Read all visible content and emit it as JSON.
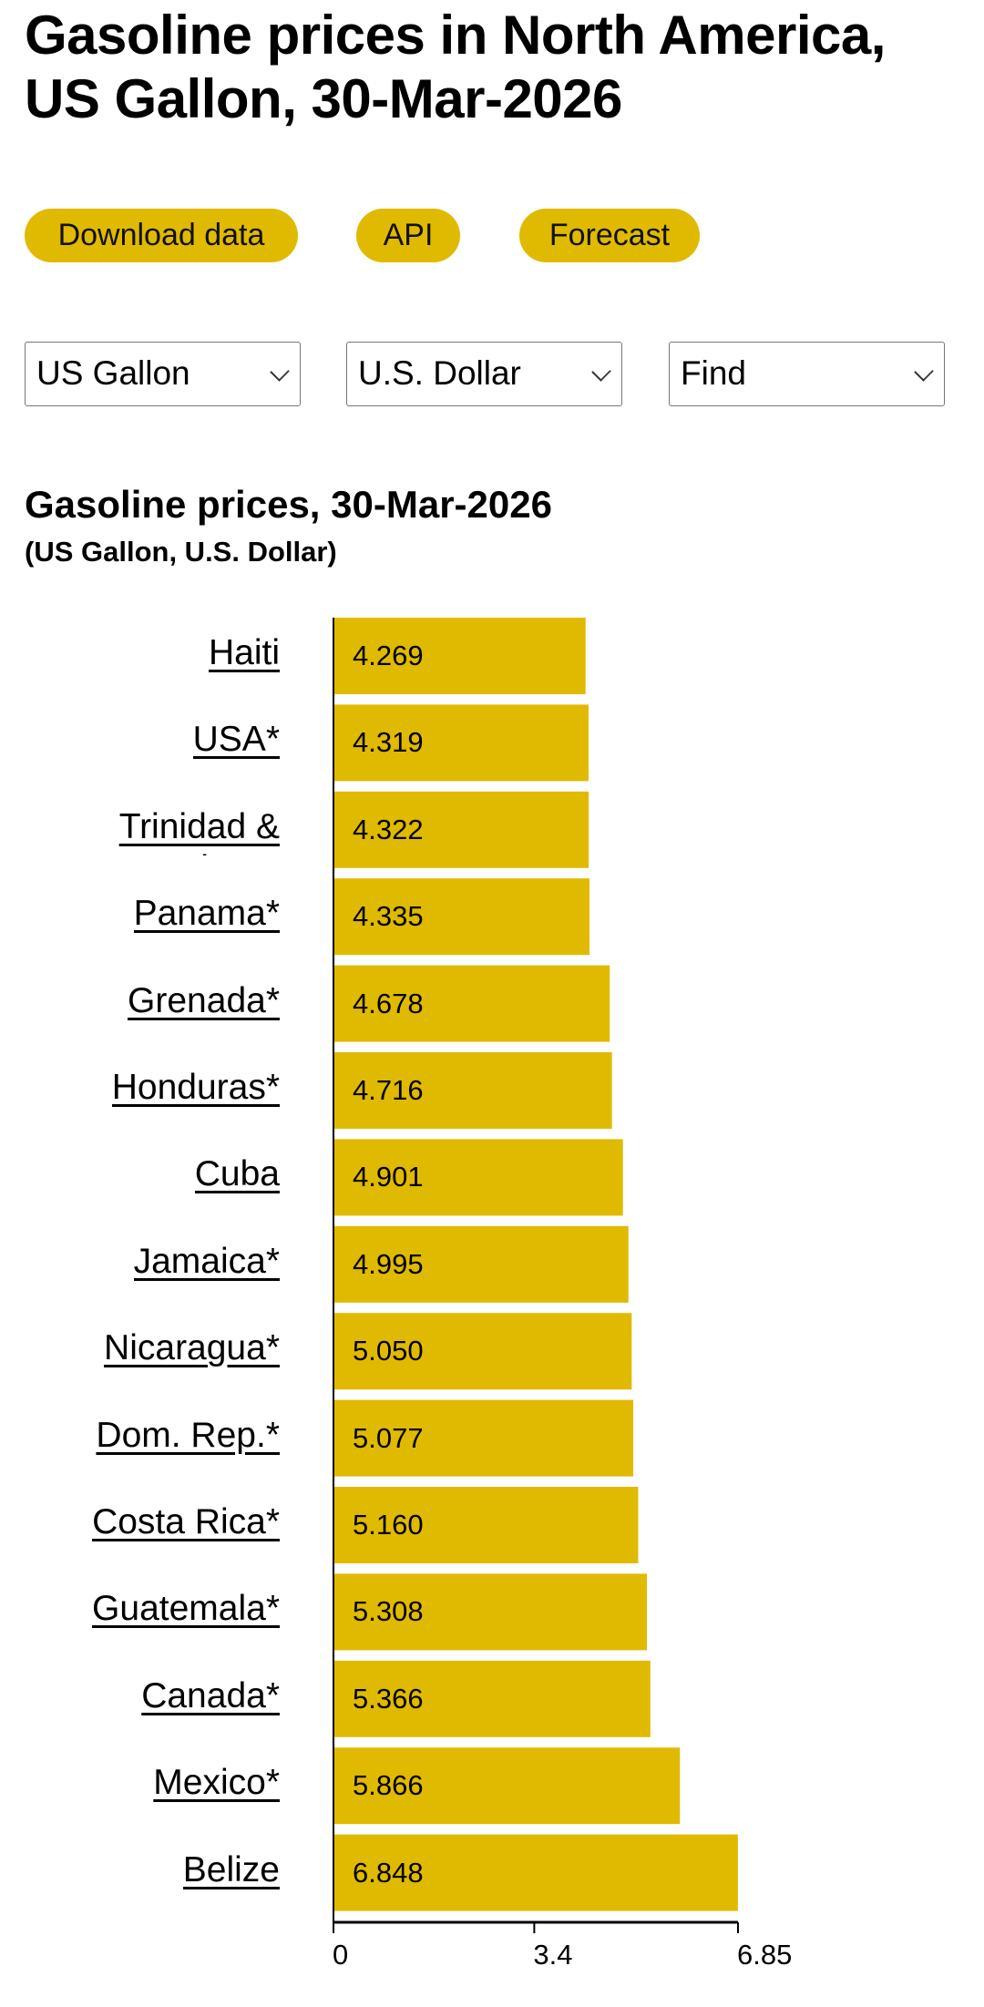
{
  "page": {
    "title_line1": "Gasoline prices in North America,",
    "title_line2": "US Gallon, 30-Mar-2026"
  },
  "buttons": {
    "download": "Download data",
    "api": "API",
    "forecast": "Forecast"
  },
  "selects": {
    "unit": "US Gallon",
    "currency": "U.S. Dollar",
    "find": "Find"
  },
  "colors": {
    "accent": "#e0ba00",
    "axis": "#000000"
  },
  "chart_data": {
    "type": "bar",
    "orientation": "horizontal",
    "title": "Gasoline prices, 30-Mar-2026",
    "subtitle": "(US Gallon, U.S. Dollar)",
    "categories": [
      "Haiti ",
      "USA*",
      "Trinidad & Tobago",
      "Panama*",
      "Grenada*",
      "Honduras*",
      "Cuba ",
      "Jamaica*",
      "Nicaragua*",
      "Dom. Rep.*",
      "Costa Rica*",
      "Guatemala*",
      "Canada*",
      "Mexico*",
      "Belize "
    ],
    "values": [
      4.269,
      4.319,
      4.322,
      4.335,
      4.678,
      4.716,
      4.901,
      4.995,
      5.05,
      5.077,
      5.16,
      5.308,
      5.366,
      5.866,
      6.848
    ],
    "value_labels": [
      "4.269",
      "4.319",
      "4.322",
      "4.335",
      "4.678",
      "4.716",
      "4.901",
      "4.995",
      "5.050",
      "5.077",
      "5.160",
      "5.308",
      "5.366",
      "5.866",
      "6.848"
    ],
    "xlim": [
      0,
      6.85
    ],
    "xticks": [
      0,
      3.4,
      6.85
    ],
    "xtick_labels": [
      "0",
      "3.4",
      "6.85"
    ],
    "xlabel": "",
    "ylabel": "",
    "grid": false
  }
}
